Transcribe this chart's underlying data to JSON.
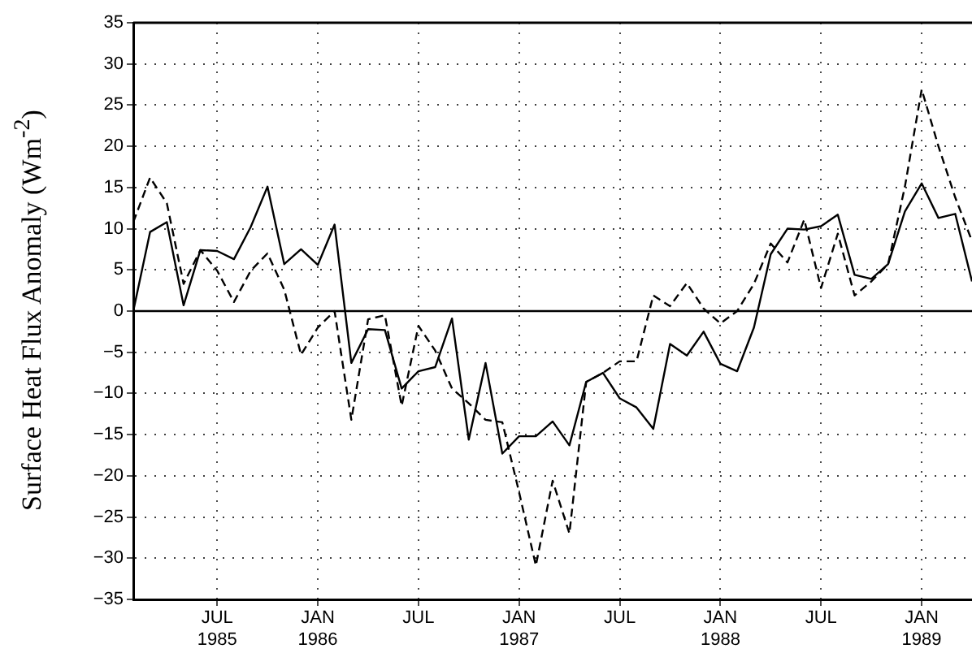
{
  "chart_data": {
    "type": "line",
    "ylabel": "Surface Heat Flux Anomaly (Wm$^{-2}$)",
    "x": [
      "1985-02",
      "1985-03",
      "1985-04",
      "1985-05",
      "1985-06",
      "1985-07",
      "1985-08",
      "1985-09",
      "1985-10",
      "1985-11",
      "1985-12",
      "1986-01",
      "1986-02",
      "1986-03",
      "1986-04",
      "1986-05",
      "1986-06",
      "1986-07",
      "1986-08",
      "1986-09",
      "1986-10",
      "1986-11",
      "1986-12",
      "1987-01",
      "1987-02",
      "1987-03",
      "1987-04",
      "1987-05",
      "1987-06",
      "1987-07",
      "1987-08",
      "1987-09",
      "1987-10",
      "1987-11",
      "1987-12",
      "1988-01",
      "1988-02",
      "1988-03",
      "1988-04",
      "1988-05",
      "1988-06",
      "1988-07",
      "1988-08",
      "1988-09",
      "1988-10",
      "1988-11",
      "1988-12",
      "1989-01",
      "1989-02",
      "1989-03",
      "1989-04"
    ],
    "series": [
      {
        "color": "#000000",
        "line_style": "solid",
        "values": [
          0,
          9.6,
          10.8,
          0.7,
          7.4,
          7.3,
          6.3,
          10.2,
          15.1,
          5.7,
          7.5,
          5.6,
          10.5,
          -6.3,
          -2.2,
          -2.3,
          -9.4,
          -7.3,
          -6.8,
          -0.9,
          -15.6,
          -6.3,
          -17.3,
          -15.2,
          -15.2,
          -13.4,
          -16.3,
          -8.6,
          -7.5,
          -10.6,
          -11.7,
          -14.3,
          -4.0,
          -5.4,
          -2.5,
          -6.4,
          -7.3,
          -2.0,
          6.9,
          10.0,
          9.9,
          10.3,
          11.7,
          4.4,
          3.9,
          5.7,
          12.1,
          15.5,
          11.3,
          11.8,
          3.6
        ]
      },
      {
        "color": "#000000",
        "line_style": "dashed",
        "values": [
          10.8,
          16.2,
          13.1,
          3.3,
          7.4,
          4.9,
          1.1,
          4.9,
          7.0,
          2.6,
          -5.3,
          -2.0,
          0,
          -13.2,
          -1.0,
          -0.5,
          -11.5,
          -1.8,
          -4.8,
          -9.4,
          -11.2,
          -13.2,
          -13.5,
          -22,
          -30.9,
          -20.6,
          -27.0,
          -8.6,
          -7.5,
          -6.1,
          -6.1,
          1.9,
          0.6,
          3.4,
          0.3,
          -1.5,
          0,
          3.3,
          8.2,
          5.9,
          11.1,
          2.8,
          9.4,
          1.9,
          3.6,
          5.7,
          15.1,
          26.9,
          20.0,
          13.8,
          8.5
        ]
      }
    ],
    "xlim": [
      "1985-02",
      "1989-04"
    ],
    "xticks": [
      {
        "value": "1985-07",
        "label": "JUL\n1985"
      },
      {
        "value": "1986-01",
        "label": "JAN\n1986"
      },
      {
        "value": "1986-07",
        "label": "JUL"
      },
      {
        "value": "1987-01",
        "label": "JAN\n1987"
      },
      {
        "value": "1987-07",
        "label": "JUL"
      },
      {
        "value": "1988-01",
        "label": "JAN\n1988"
      },
      {
        "value": "1988-07",
        "label": "JUL"
      },
      {
        "value": "1989-01",
        "label": "JAN\n1989"
      }
    ],
    "ylim": [
      -35,
      35
    ],
    "yticks": [
      -35,
      -30,
      -25,
      -20,
      -15,
      -10,
      -5,
      0,
      5,
      10,
      15,
      20,
      25,
      30,
      35
    ],
    "ref_lines": [
      {
        "axis": "y",
        "value": 0,
        "color": "#000000",
        "line_style": "solid"
      }
    ],
    "grid": true,
    "legend": false,
    "marker": "none"
  }
}
